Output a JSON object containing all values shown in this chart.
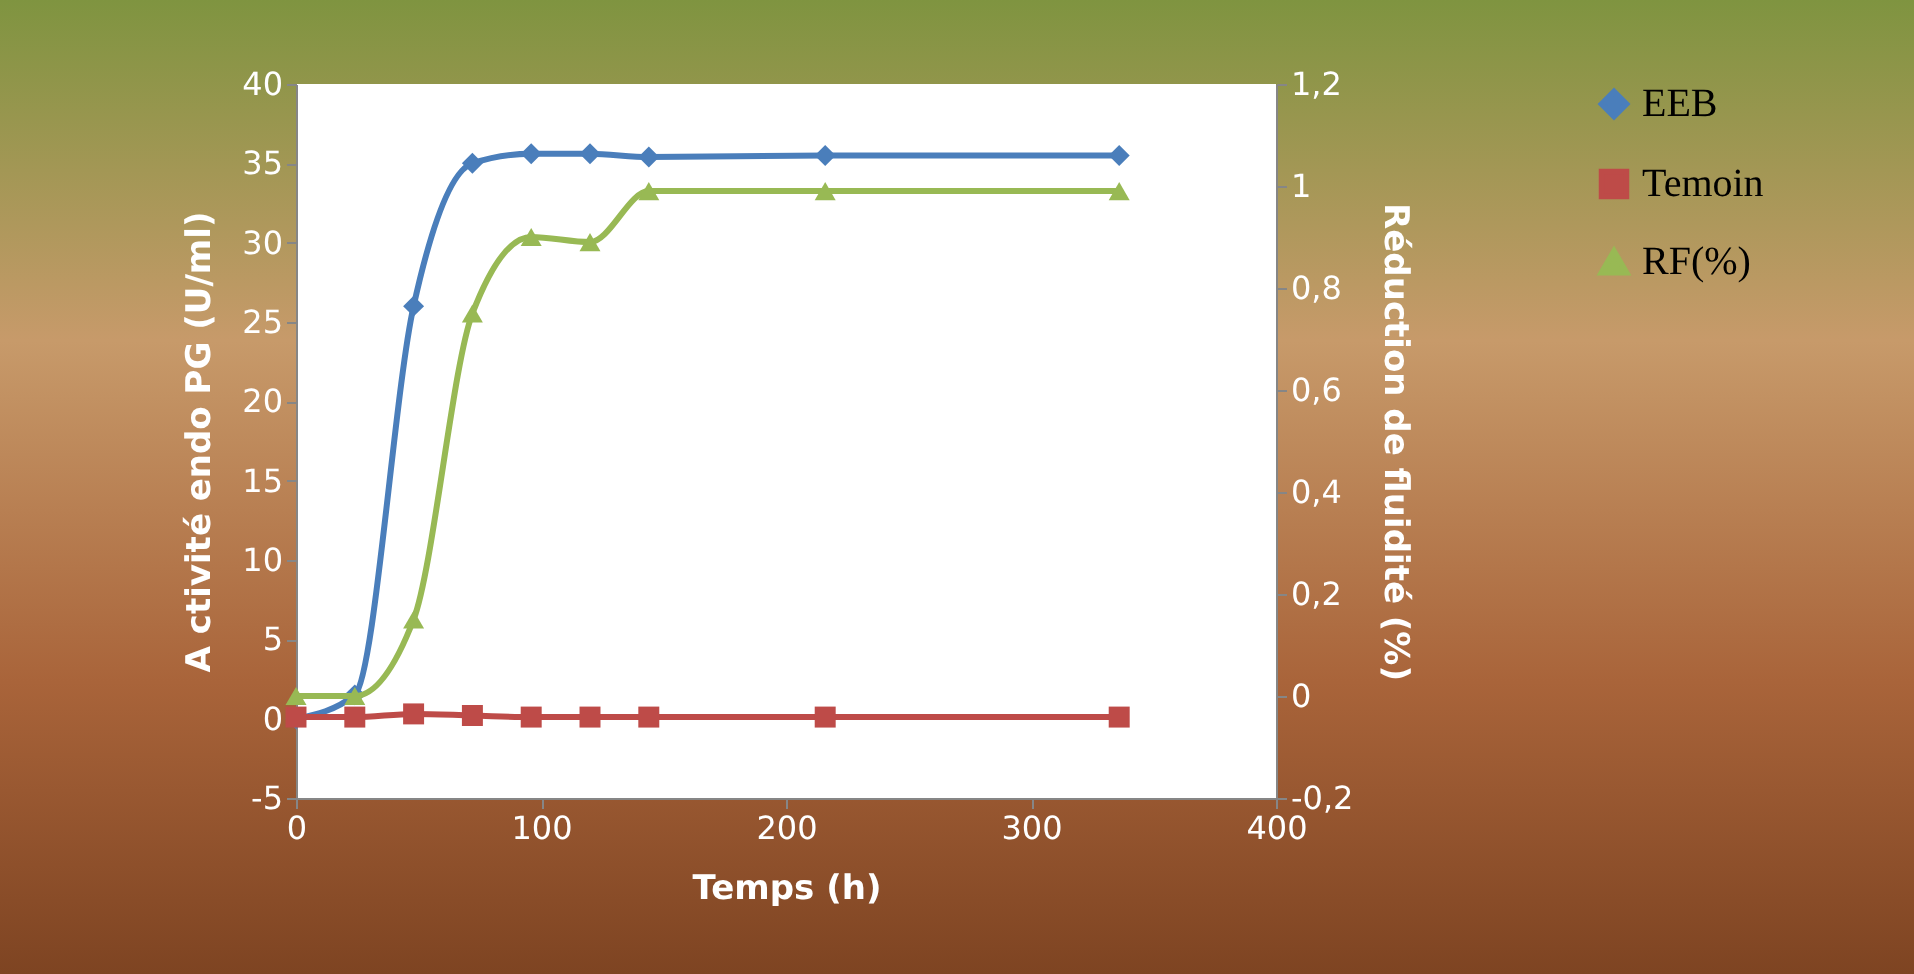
{
  "chart_data": {
    "type": "line",
    "xlabel": "Temps (h)",
    "ylabel": "A ctivité endo PG (U/ml)",
    "y2label": "Réduction de fluidité (%)",
    "x": [
      0,
      24,
      48,
      72,
      96,
      120,
      144,
      216,
      336
    ],
    "series": [
      {
        "name": "EEB",
        "color": "#4a7ebb",
        "marker": "diamond",
        "values": [
          0,
          1.5,
          26,
          35,
          35.6,
          35.6,
          35.4,
          35.5,
          35.5
        ]
      },
      {
        "name": "Temoin",
        "color": "#be4b48",
        "marker": "square",
        "values": [
          0.1,
          0.1,
          0.3,
          0.2,
          0.1,
          0.1,
          0.1,
          0.1,
          0.1
        ]
      },
      {
        "name": "RF(%)",
        "color": "#98b954",
        "marker": "triangle",
        "axis": "y2",
        "values": [
          0,
          0,
          0.15,
          0.75,
          0.9,
          0.89,
          0.99,
          0.99,
          0.99
        ]
      }
    ],
    "xlim": [
      0,
      400
    ],
    "xticks": [
      0,
      100,
      200,
      300,
      400
    ],
    "ylim": [
      -5,
      40
    ],
    "yticks": [
      {
        "value": -5,
        "label": "-5"
      },
      0,
      5,
      10,
      15,
      20,
      25,
      30,
      35,
      40
    ],
    "y2lim": [
      -0.2,
      1.2
    ],
    "y2ticks": [
      {
        "value": -0.2,
        "label": "-0,2"
      },
      {
        "value": 0,
        "label": "0"
      },
      {
        "value": 0.2,
        "label": "0,2"
      },
      {
        "value": 0.4,
        "label": "0,4"
      },
      {
        "value": 0.6,
        "label": "0,6"
      },
      {
        "value": 0.8,
        "label": "0,8"
      },
      {
        "value": 1,
        "label": "1"
      },
      {
        "value": 1.2,
        "label": "1,2"
      }
    ],
    "grid": false,
    "legend": "right",
    "line_style": "solid"
  }
}
